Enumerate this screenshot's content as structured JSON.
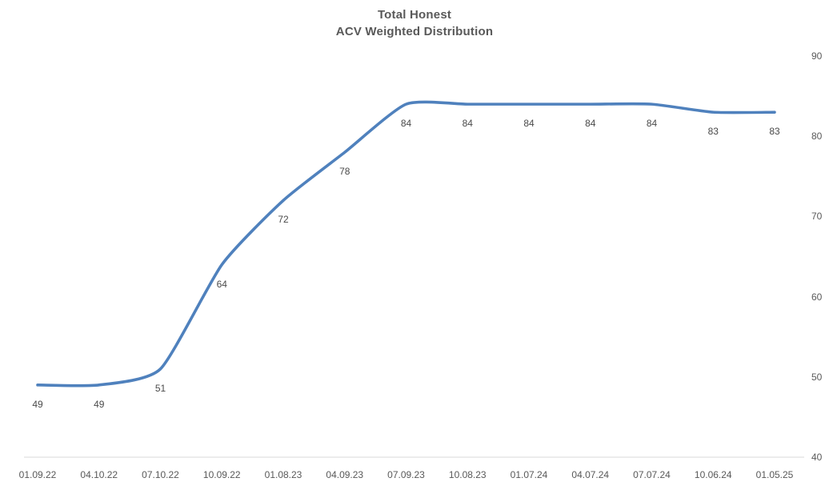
{
  "title": {
    "line1": "Total Honest",
    "line2": "ACV Weighted Distribution"
  },
  "colors": {
    "line": "#4F81BD",
    "label_text": "#595959",
    "data_label_text": "#4a4a4a",
    "axis_line": "#d9d9d9",
    "background": "#ffffff"
  },
  "chart_data": {
    "type": "line",
    "title": "Total Honest\nACV Weighted Distribution",
    "title_lines": [
      "Total Honest",
      "ACV Weighted Distribution"
    ],
    "categories": [
      "01.09.22",
      "04.10.22",
      "07.10.22",
      "10.09.22",
      "01.08.23",
      "04.09.23",
      "07.09.23",
      "10.08.23",
      "01.07.24",
      "04.07.24",
      "07.07.24",
      "10.06.24",
      "01.05.25"
    ],
    "series": [
      {
        "name": "ACV Weighted Distribution",
        "values": [
          49,
          49,
          51,
          64,
          72,
          78,
          84,
          84,
          84,
          84,
          84,
          83,
          83
        ]
      }
    ],
    "data_labels": [
      "49",
      "49",
      "51",
      "64",
      "72",
      "78",
      "84",
      "84",
      "84",
      "84",
      "84",
      "83",
      "83"
    ],
    "data_label_position": "below",
    "xlabel": "",
    "ylabel": "",
    "ylim": [
      40,
      90
    ],
    "yticks": [
      "40",
      "50",
      "60",
      "70",
      "80",
      "90"
    ],
    "ytick_values": [
      40,
      50,
      60,
      70,
      80,
      90
    ],
    "ytick_side": "right",
    "grid": false,
    "legend_position": "none",
    "line_style": "smooth"
  }
}
